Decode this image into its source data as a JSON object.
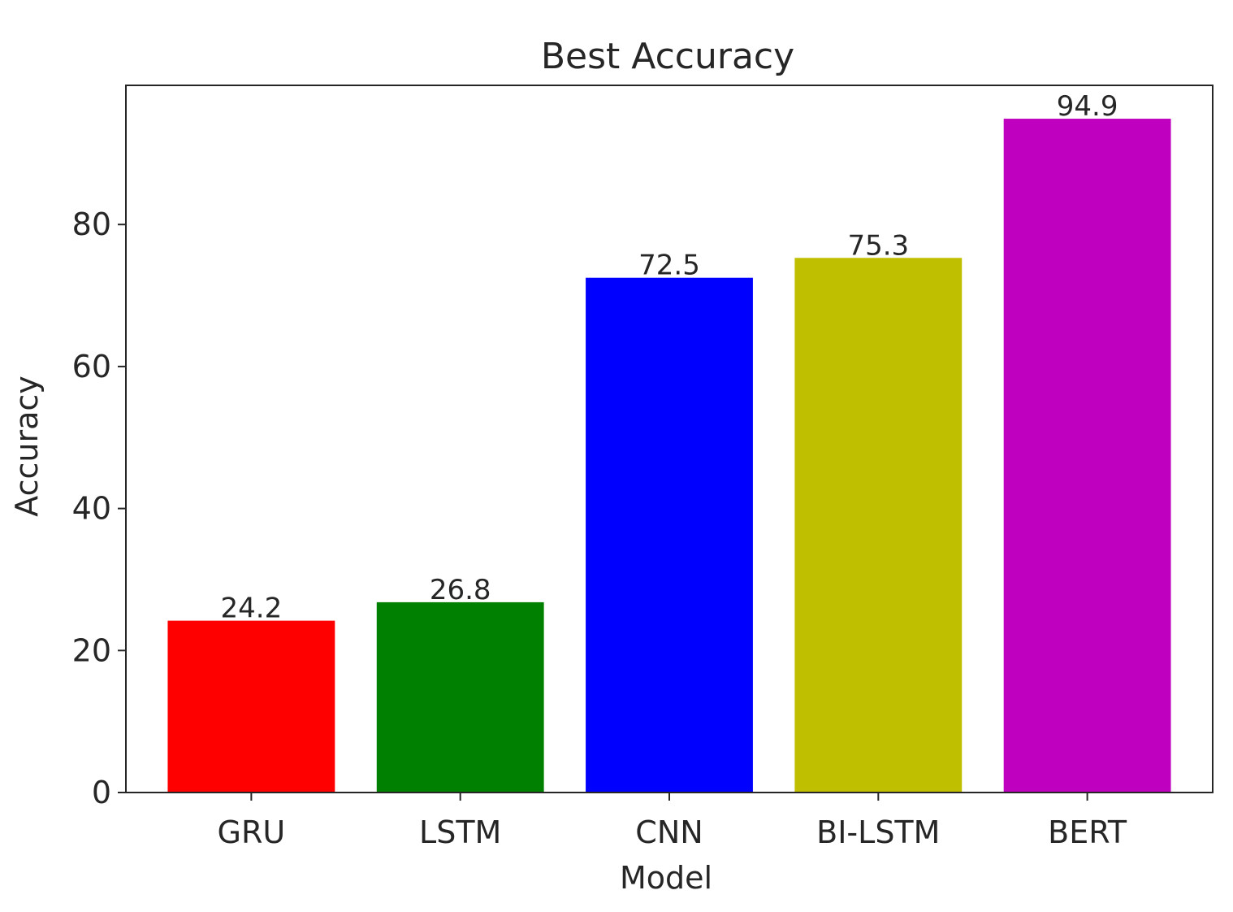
{
  "chart_data": {
    "type": "bar",
    "title": "Best Accuracy",
    "xlabel": "Model",
    "ylabel": "Accuracy",
    "categories": [
      "GRU",
      "LSTM",
      "CNN",
      "BI-LSTM",
      "BERT"
    ],
    "values": [
      24.2,
      26.8,
      72.5,
      75.3,
      94.9
    ],
    "value_labels": [
      "24.2",
      "26.8",
      "72.5",
      "75.3",
      "94.9"
    ],
    "colors": [
      "#ff0000",
      "#008000",
      "#0000ff",
      "#bfbf00",
      "#bf00bf"
    ],
    "ylim": [
      0,
      99.6
    ],
    "yticks": [
      0,
      20,
      40,
      60,
      80
    ],
    "ytick_labels": [
      "0",
      "20",
      "40",
      "60",
      "80"
    ],
    "grid": false,
    "legend": false
  }
}
